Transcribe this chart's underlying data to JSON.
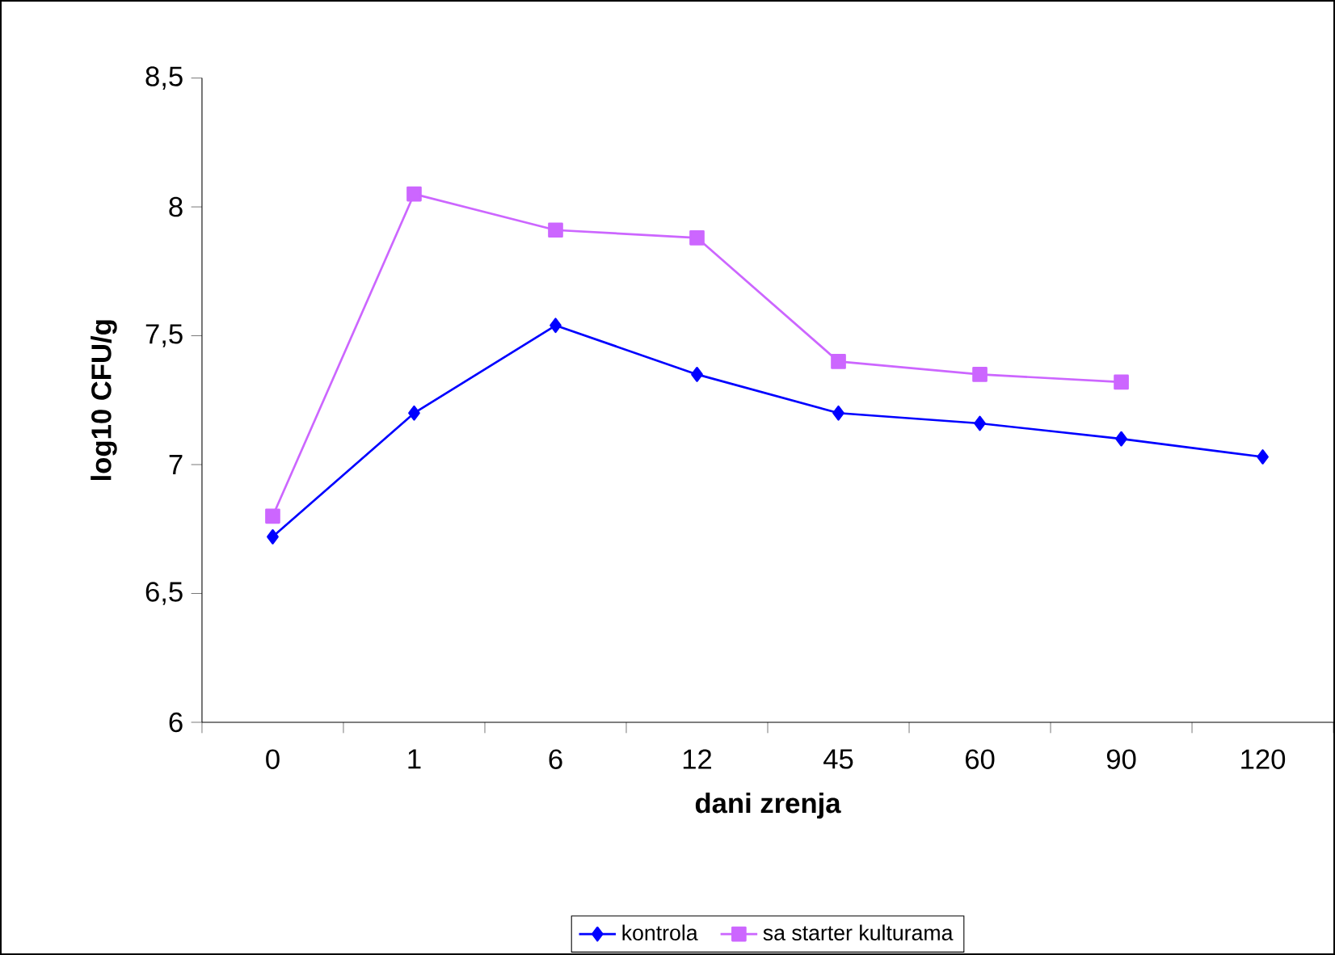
{
  "chart_data": {
    "type": "line",
    "xlabel": "dani zrenja",
    "ylabel": "log10 CFU/g",
    "categories": [
      "0",
      "1",
      "6",
      "12",
      "45",
      "60",
      "90",
      "120"
    ],
    "series": [
      {
        "name": "kontrola",
        "color": "#0000ff",
        "marker": "diamond",
        "values": [
          6.72,
          7.2,
          7.54,
          7.35,
          7.2,
          7.16,
          7.1,
          7.03
        ]
      },
      {
        "name": "sa starter kulturama",
        "color": "#cc66ff",
        "marker": "square",
        "values": [
          6.8,
          8.05,
          7.91,
          7.88,
          7.4,
          7.35,
          7.32,
          null
        ]
      }
    ],
    "ylim": [
      6,
      8.5
    ],
    "yticks": [
      6,
      {
        "value": 6.5,
        "label": "6,5"
      },
      7,
      {
        "value": 7.5,
        "label": "7,5"
      },
      8,
      {
        "value": 8.5,
        "label": "8,5"
      }
    ],
    "grid": false,
    "legend": "bottom",
    "line_style": "solid"
  }
}
